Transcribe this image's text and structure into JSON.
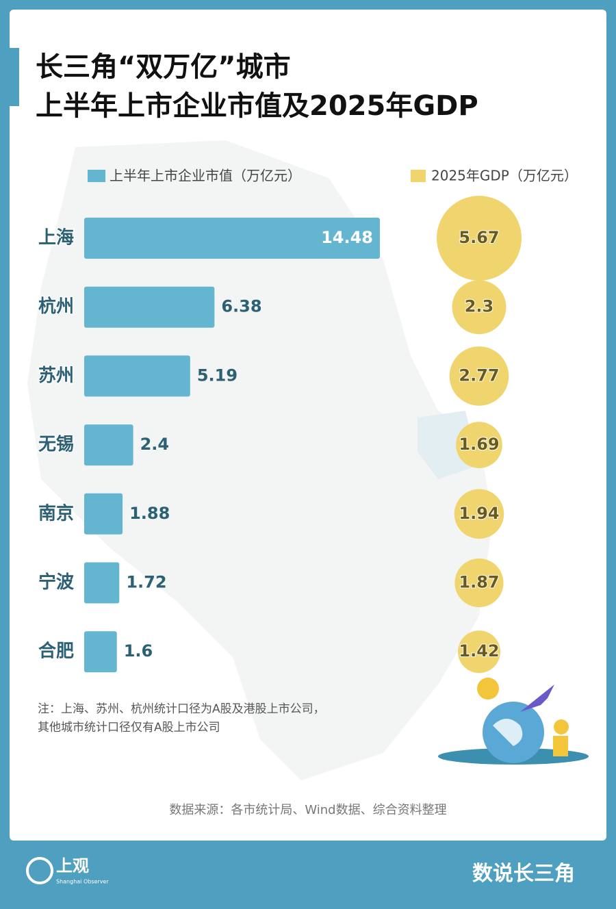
{
  "chart_data": {
    "type": "bar",
    "title": [
      "长三角“双万亿”城市",
      "上半年上市企业市值及2025年GDP"
    ],
    "categories": [
      "上海",
      "杭州",
      "苏州",
      "无锡",
      "南京",
      "宁波",
      "合肥"
    ],
    "series": [
      {
        "name": "上半年上市企业市值（万亿元）",
        "color": "#64b5cf",
        "values": [
          14.48,
          6.38,
          5.19,
          2.4,
          1.88,
          1.72,
          1.6
        ]
      },
      {
        "name": "2025年GDP（万亿元）",
        "type": "bubble",
        "color": "#f0d56e",
        "values": [
          5.67,
          2.3,
          2.77,
          1.69,
          1.94,
          1.87,
          1.42
        ]
      }
    ],
    "notes": [
      "注：上海、苏州、杭州统计口径为A股及港股上市公司，",
      "其他城市统计口径仅有A股上市公司"
    ],
    "source": "数据来源：各市统计局、Wind数据、综合资料整理"
  },
  "footer": {
    "brand": "上观",
    "brand_en": "Shanghai Observer",
    "column": "数说长三角"
  }
}
